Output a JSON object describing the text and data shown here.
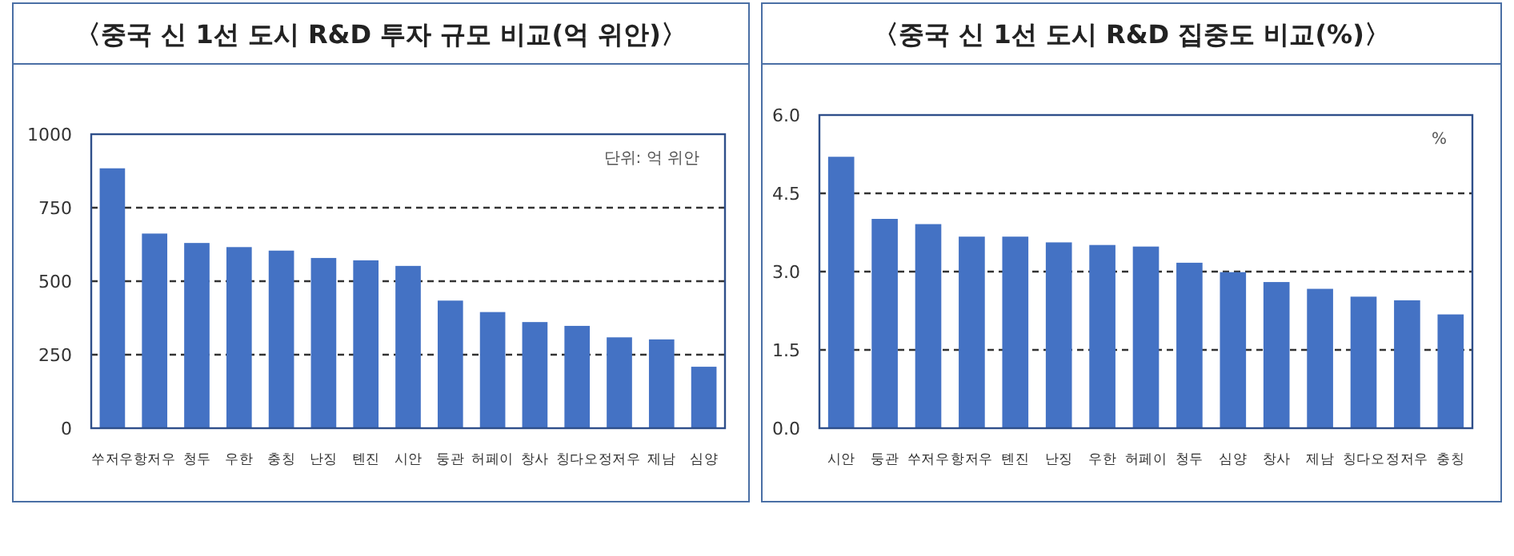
{
  "chart_data": [
    {
      "type": "bar",
      "title": "〈중국 신 1선 도시 R&D 투자 규모 비교(억 위안)〉",
      "annotations": [
        "단위: 억 위안"
      ],
      "color": "#4472c4",
      "grid": "y",
      "categories": [
        "쑤저우",
        "항저우",
        "청두",
        "우한",
        "충칭",
        "난징",
        "톈진",
        "시안",
        "둥관",
        "허페이",
        "창사",
        "칭다오",
        "정저우",
        "제남",
        "심양"
      ],
      "values": [
        884,
        662,
        630,
        616,
        604,
        579,
        571,
        552,
        434,
        395,
        361,
        348,
        309,
        302,
        209
      ],
      "ylim": [
        0,
        1000
      ],
      "yticks": [
        0,
        250,
        500,
        750,
        1000
      ]
    },
    {
      "type": "bar",
      "title": "〈중국 신 1선 도시 R&D 집중도 비교(%)〉",
      "annotations": [
        "%"
      ],
      "color": "#4472c4",
      "grid": "y",
      "categories": [
        "시안",
        "둥관",
        "쑤저우",
        "항저우",
        "톈진",
        "난징",
        "우한",
        "허페이",
        "청두",
        "심양",
        "창사",
        "제남",
        "칭다오",
        "정저우",
        "충칭"
      ],
      "values": [
        5.2,
        4.01,
        3.91,
        3.67,
        3.67,
        3.56,
        3.51,
        3.48,
        3.17,
        2.99,
        2.8,
        2.67,
        2.52,
        2.45,
        2.18
      ],
      "ylim": [
        0,
        6
      ],
      "yticks": [
        {
          "value": 0,
          "label": "0.0"
        },
        {
          "value": 1.5,
          "label": "1.5"
        },
        {
          "value": 3,
          "label": "3.0"
        },
        {
          "value": 4.5,
          "label": "4.5"
        },
        {
          "value": 6,
          "label": "6.0"
        }
      ]
    }
  ]
}
